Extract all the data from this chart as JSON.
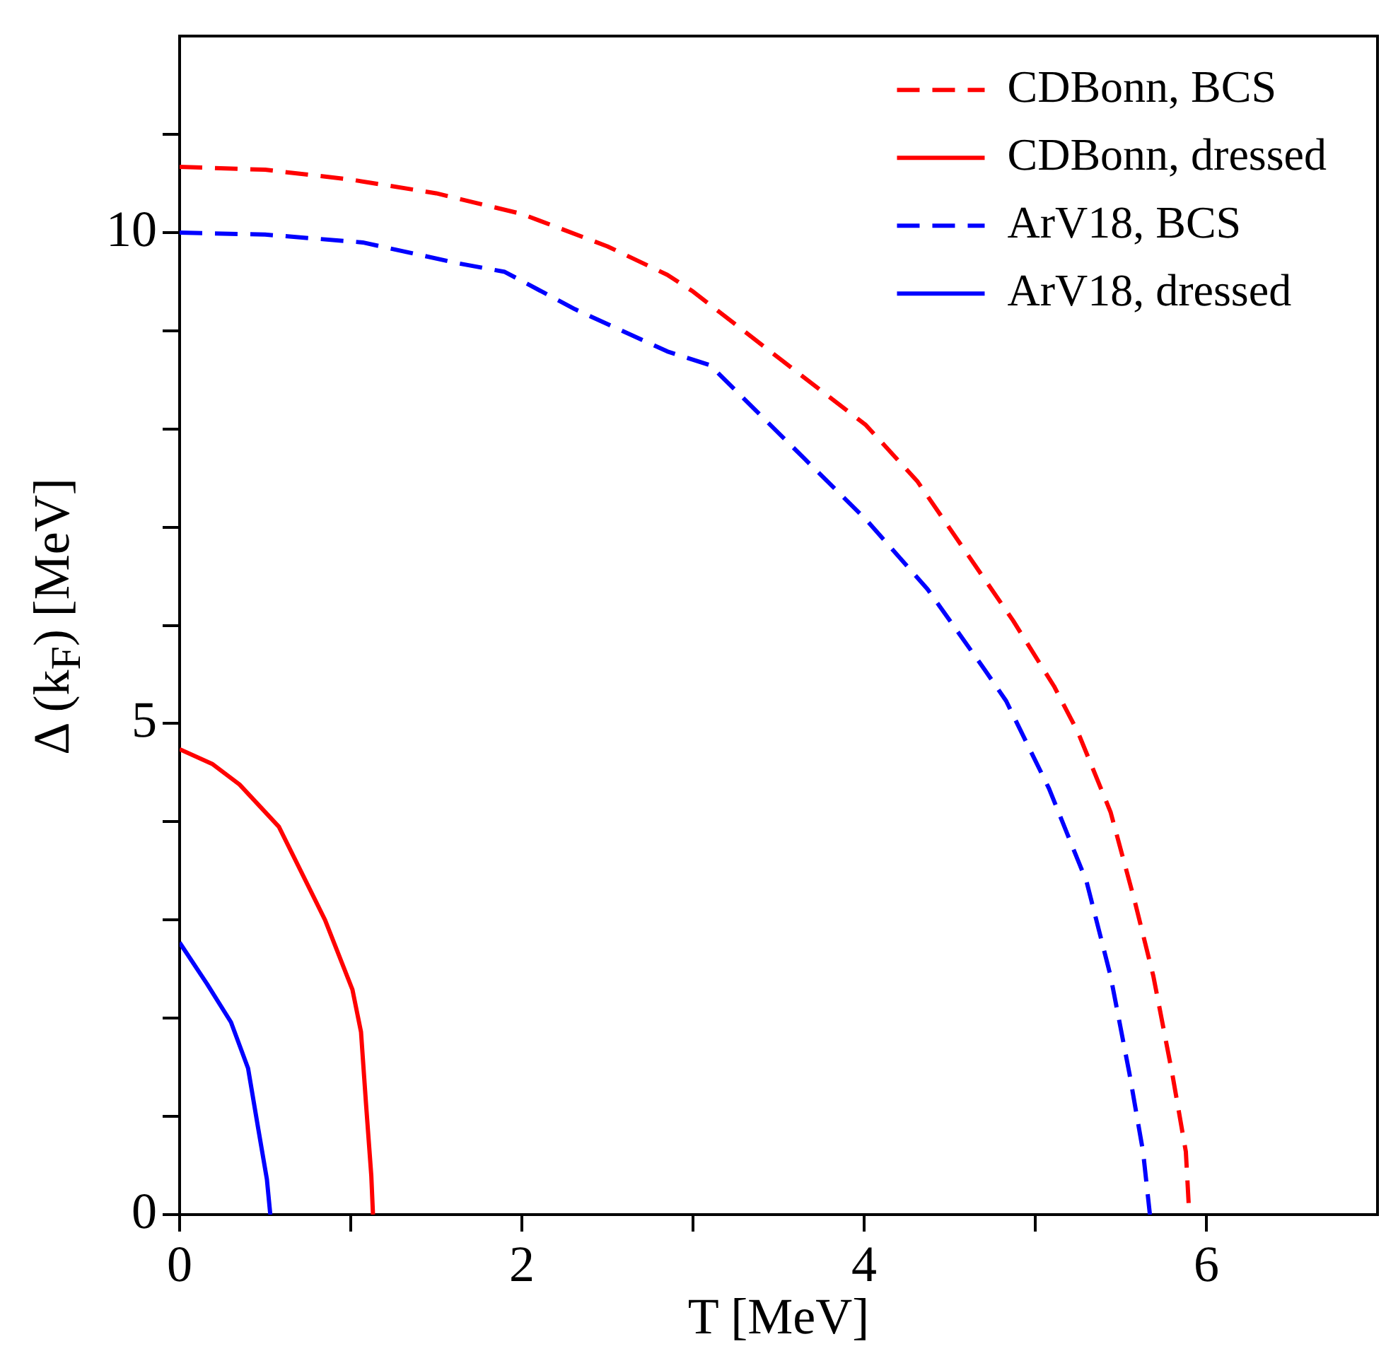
{
  "chart_data": {
    "type": "line",
    "xlabel": "T [MeV]",
    "ylabel": "Δ (k$_{F}$) [MeV]",
    "xlim": [
      0,
      7
    ],
    "xticks": [
      0,
      {
        "value": 1,
        "label": null
      },
      2,
      {
        "value": 3,
        "label": null
      },
      4,
      {
        "value": 5,
        "label": null
      },
      6
    ],
    "ylim": [
      0,
      12
    ],
    "yticks": [
      0,
      {
        "value": 1,
        "label": null
      },
      {
        "value": 2,
        "label": null
      },
      {
        "value": 3,
        "label": null
      },
      {
        "value": 4,
        "label": null
      },
      5,
      {
        "value": 6,
        "label": null
      },
      {
        "value": 7,
        "label": null
      },
      {
        "value": 8,
        "label": null
      },
      {
        "value": 9,
        "label": null
      },
      10,
      {
        "value": 11,
        "label": null
      }
    ],
    "legend": "top right",
    "marker": "none",
    "series": [
      {
        "name": "CDBonn, BCS",
        "color": "#ff0000",
        "line_style": "dashed",
        "x": [
          0,
          0.5,
          1,
          1.5,
          2,
          2.5,
          2.85,
          3,
          3.63,
          4.01,
          4.31,
          4.59,
          4.87,
          5.11,
          5.25,
          5.44,
          5.58,
          5.69,
          5.8,
          5.88,
          5.9
        ],
        "values": [
          10.67,
          10.64,
          10.54,
          10.4,
          10.19,
          9.86,
          9.57,
          9.4,
          8.55,
          8.04,
          7.47,
          6.76,
          6.05,
          5.38,
          4.91,
          4.1,
          3.2,
          2.43,
          1.44,
          0.64,
          0
        ]
      },
      {
        "name": "CDBonn, dressed",
        "color": "#ff0000",
        "line_style": "solid",
        "x": [
          0,
          0.19,
          0.35,
          0.58,
          0.85,
          1.01,
          1.06,
          1.09,
          1.12,
          1.13
        ],
        "values": [
          4.74,
          4.59,
          4.38,
          3.95,
          3.0,
          2.29,
          1.86,
          1.11,
          0.4,
          0
        ]
      },
      {
        "name": "ArV18, BCS",
        "color": "#0000ff",
        "line_style": "dashed",
        "x": [
          0,
          0.5,
          1.07,
          1.62,
          1.9,
          2.31,
          2.85,
          3.1,
          3.65,
          4.01,
          4.37,
          4.7,
          4.83,
          5.08,
          5.3,
          5.44,
          5.55,
          5.63,
          5.67
        ],
        "values": [
          10.0,
          9.98,
          9.9,
          9.69,
          9.6,
          9.22,
          8.79,
          8.65,
          7.7,
          7.08,
          6.37,
          5.56,
          5.23,
          4.34,
          3.39,
          2.43,
          1.44,
          0.64,
          0
        ]
      },
      {
        "name": "ArV18, dressed",
        "color": "#0000ff",
        "line_style": "solid",
        "x": [
          0,
          0.16,
          0.3,
          0.4,
          0.46,
          0.51,
          0.53
        ],
        "values": [
          2.77,
          2.35,
          1.96,
          1.49,
          0.87,
          0.36,
          0
        ]
      }
    ]
  }
}
